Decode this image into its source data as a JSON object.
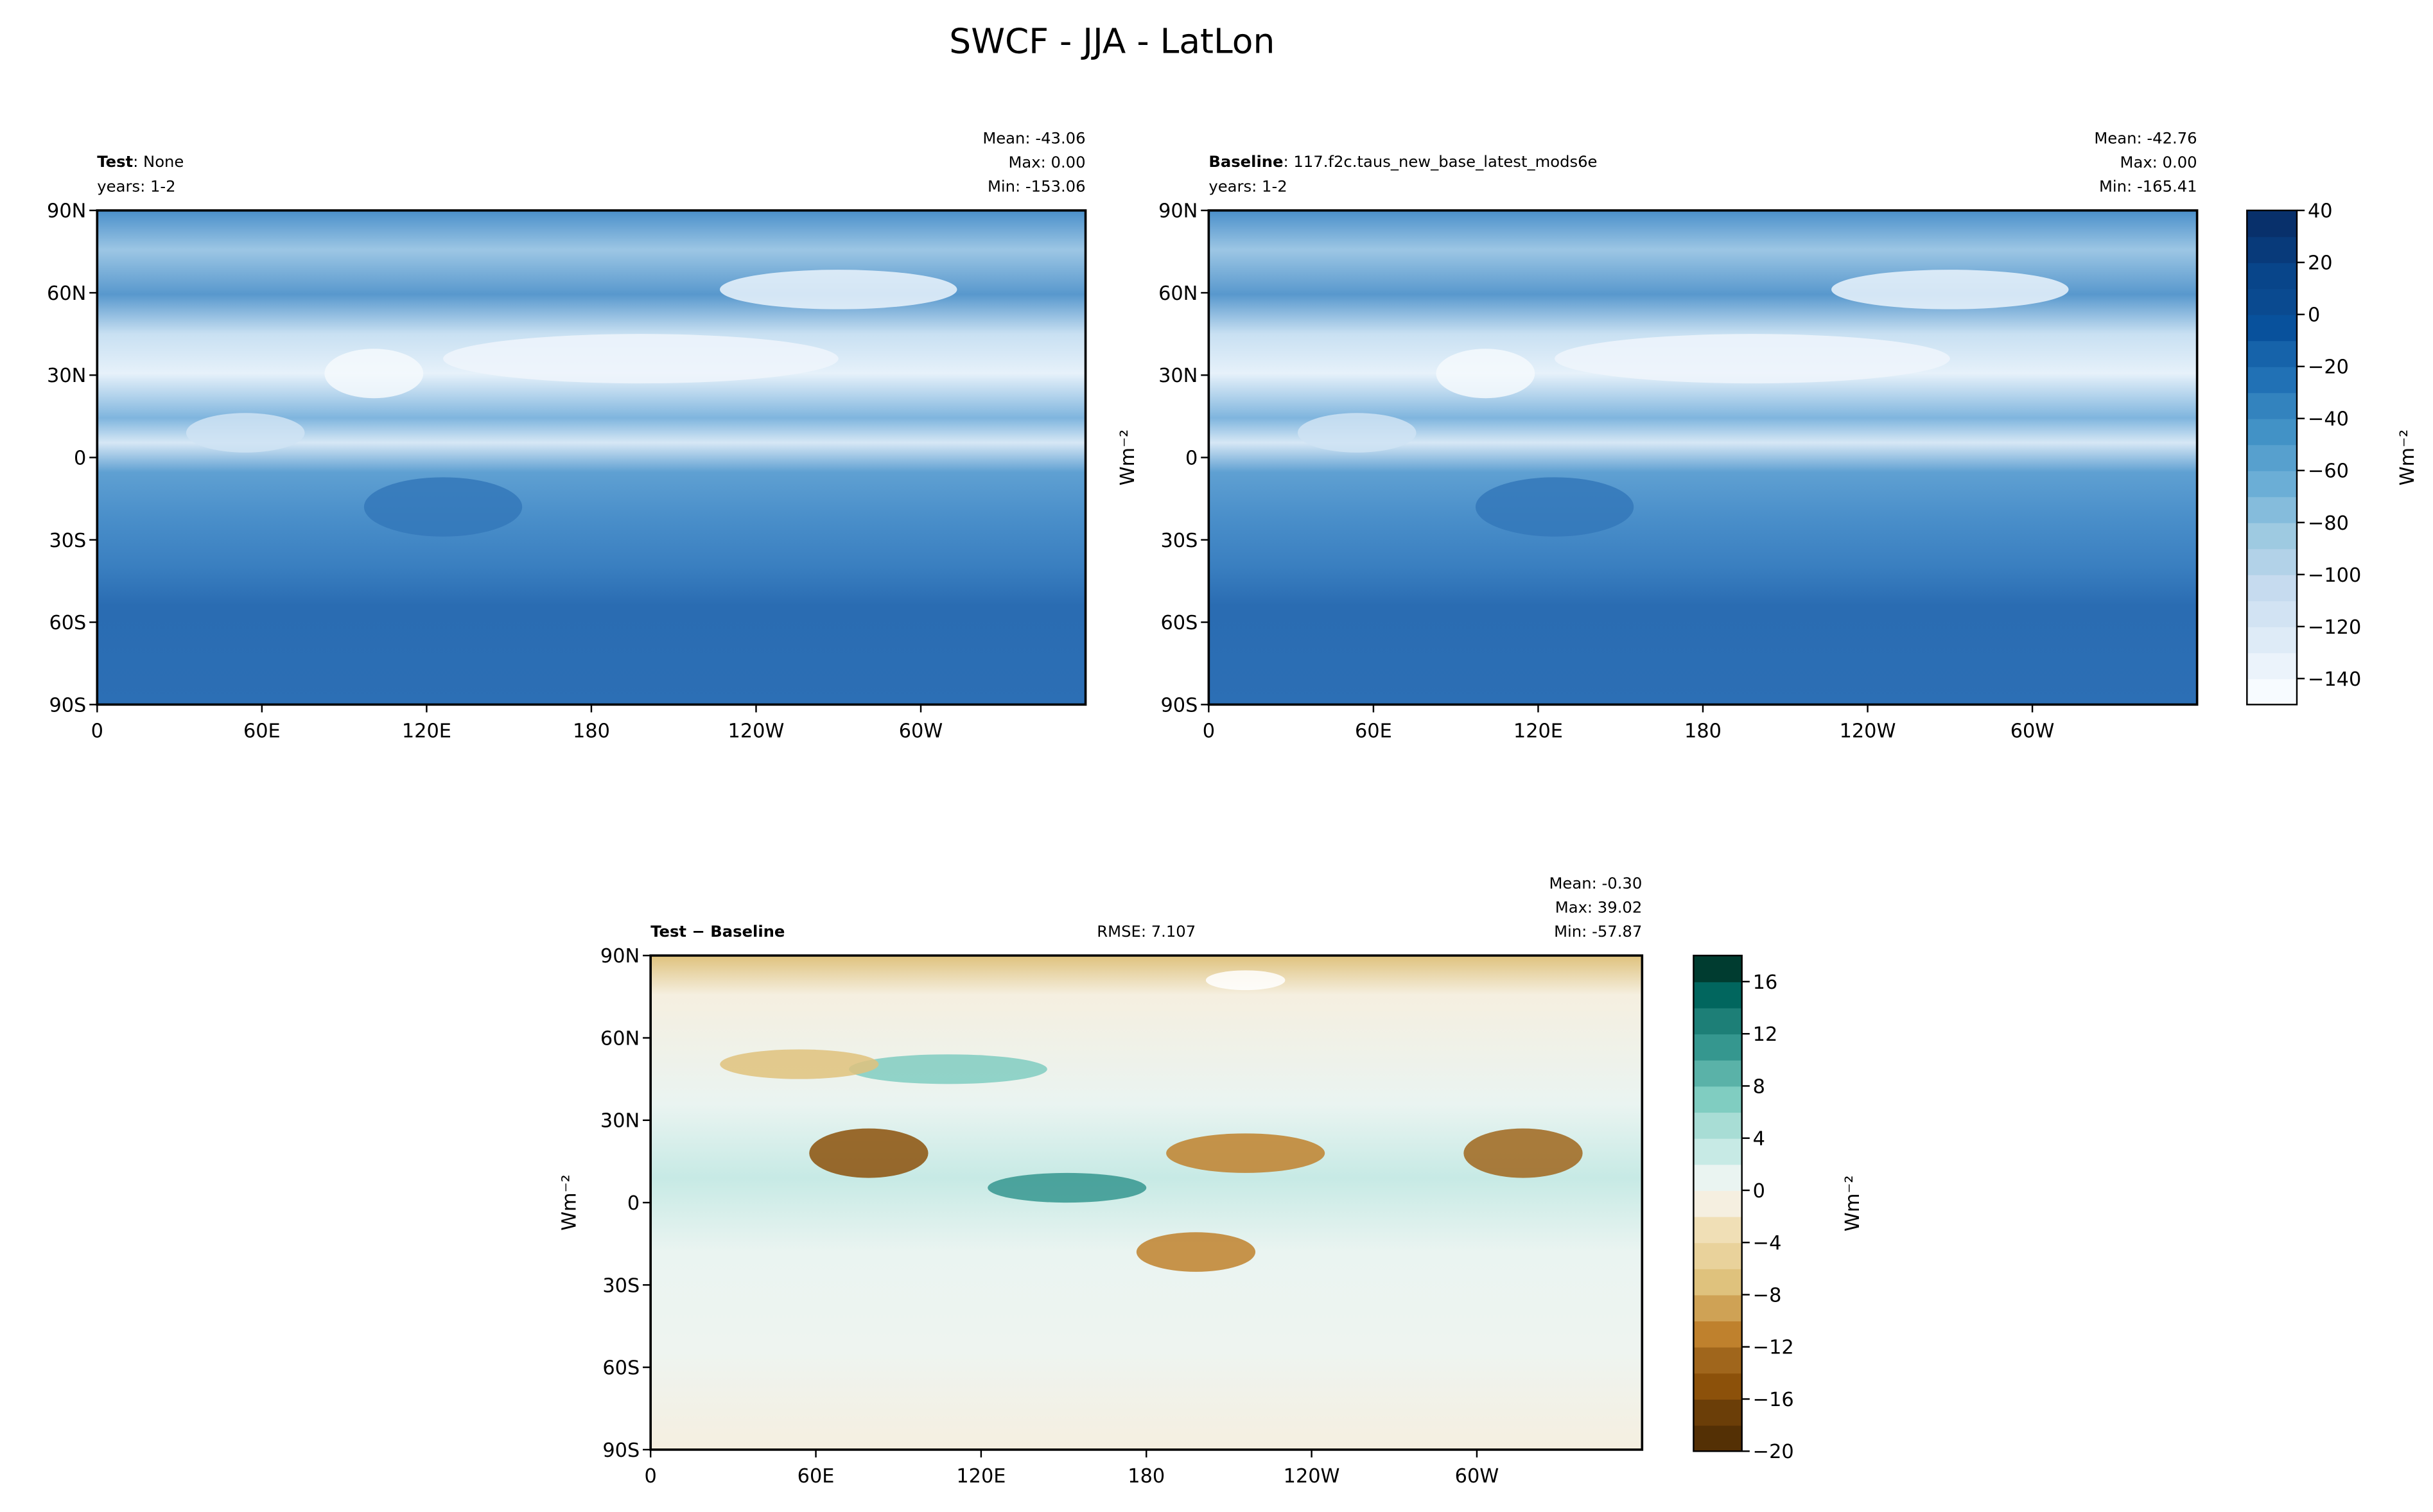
{
  "title": "SWCF - JJA - LatLon",
  "chart_data": [
    {
      "type": "map",
      "title": "Test",
      "title_detail": ": None",
      "subtitle": "years: 1-2",
      "stats": [
        "Mean: -43.06",
        "Max:  0.00",
        "Min: -153.06"
      ],
      "xlim": [
        0,
        360
      ],
      "ylim": [
        -90,
        90
      ],
      "xticks": [
        0,
        {
          "value": 60,
          "label": "60E"
        },
        {
          "value": 120,
          "label": "120E"
        },
        180,
        {
          "value": 240,
          "label": "120W"
        },
        {
          "value": 300,
          "label": "60W"
        }
      ],
      "yticks": [
        {
          "value": 90,
          "label": "90N"
        },
        {
          "value": 60,
          "label": "60N"
        },
        {
          "value": 30,
          "label": "30N"
        },
        0,
        {
          "value": -30,
          "label": "30S"
        },
        {
          "value": -60,
          "label": "60S"
        },
        {
          "value": -90,
          "label": "90S"
        }
      ]
    },
    {
      "type": "map",
      "title": "Baseline",
      "title_detail": ": 117.f2c.taus_new_base_latest_mods6e",
      "subtitle": "years: 1-2",
      "stats": [
        "Mean: -42.76",
        "Max:  0.00",
        "Min: -165.41"
      ],
      "ylabel": "Wm⁻²",
      "xlim": [
        0,
        360
      ],
      "ylim": [
        -90,
        90
      ],
      "xticks": [
        0,
        {
          "value": 60,
          "label": "60E"
        },
        {
          "value": 120,
          "label": "120E"
        },
        180,
        {
          "value": 240,
          "label": "120W"
        },
        {
          "value": 300,
          "label": "60W"
        }
      ],
      "yticks": [
        {
          "value": 90,
          "label": "90N"
        },
        {
          "value": 60,
          "label": "60N"
        },
        {
          "value": 30,
          "label": "30N"
        },
        0,
        {
          "value": -30,
          "label": "30S"
        },
        {
          "value": -60,
          "label": "60S"
        },
        {
          "value": -90,
          "label": "90S"
        }
      ]
    },
    {
      "type": "colorbar",
      "label": "Wm⁻²",
      "ylim": [
        -150,
        40
      ],
      "levels": [
        -150,
        -140,
        -130,
        -120,
        -110,
        -100,
        -90,
        -80,
        -70,
        -60,
        -50,
        -40,
        -30,
        -20,
        -10,
        0,
        10,
        20,
        30,
        40
      ],
      "colors": [
        "#f7fbff",
        "#ebf3fb",
        "#deebf7",
        "#d2e3f3",
        "#c6dbef",
        "#b2d2e8",
        "#9ecae1",
        "#85bcdc",
        "#6baed6",
        "#57a0ce",
        "#4292c6",
        "#3383be",
        "#2171b5",
        "#1663aa",
        "#08519c",
        "#0a4a90",
        "#08458a",
        "#083a7a",
        "#08306b"
      ],
      "yticks": [
        40,
        20,
        0,
        {
          "value": -20,
          "label": "−20"
        },
        {
          "value": -40,
          "label": "−40"
        },
        {
          "value": -60,
          "label": "−60"
        },
        {
          "value": -80,
          "label": "−80"
        },
        {
          "value": -100,
          "label": "−100"
        },
        {
          "value": -120,
          "label": "−120"
        },
        {
          "value": -140,
          "label": "−140"
        }
      ]
    },
    {
      "type": "map",
      "title": "Test − Baseline",
      "center_text": "RMSE: 7.107",
      "stats": [
        "Mean: -0.30",
        "Max: 39.02",
        "Min: -57.87"
      ],
      "ylabel": "Wm⁻²",
      "xlim": [
        0,
        360
      ],
      "ylim": [
        -90,
        90
      ],
      "xticks": [
        0,
        {
          "value": 60,
          "label": "60E"
        },
        {
          "value": 120,
          "label": "120E"
        },
        180,
        {
          "value": 240,
          "label": "120W"
        },
        {
          "value": 300,
          "label": "60W"
        }
      ],
      "yticks": [
        {
          "value": 90,
          "label": "90N"
        },
        {
          "value": 60,
          "label": "60N"
        },
        {
          "value": 30,
          "label": "30N"
        },
        0,
        {
          "value": -30,
          "label": "30S"
        },
        {
          "value": -60,
          "label": "60S"
        },
        {
          "value": -90,
          "label": "90S"
        }
      ]
    },
    {
      "type": "colorbar",
      "label": "Wm⁻²",
      "ylim": [
        -20,
        18
      ],
      "levels": [
        -20,
        -18,
        -16,
        -14,
        -12,
        -10,
        -8,
        -6,
        -4,
        -2,
        0,
        2,
        4,
        6,
        8,
        10,
        12,
        14,
        16,
        18
      ],
      "colors": [
        "#543005",
        "#6b3e08",
        "#8c510a",
        "#a0661c",
        "#bf812d",
        "#cfa255",
        "#dfc27d",
        "#e9d29b",
        "#f0dfb6",
        "#f5efe0",
        "#eaf4f1",
        "#c7eae5",
        "#a8ddd5",
        "#80cdc1",
        "#5ab2a8",
        "#35978f",
        "#1d7f77",
        "#01665e",
        "#003c30"
      ],
      "yticks": [
        16,
        12,
        8,
        4,
        0,
        {
          "value": -4,
          "label": "−4"
        },
        {
          "value": -8,
          "label": "−8"
        },
        {
          "value": -12,
          "label": "−12"
        },
        {
          "value": -16,
          "label": "−16"
        },
        {
          "value": -20,
          "label": "−20"
        }
      ]
    }
  ]
}
